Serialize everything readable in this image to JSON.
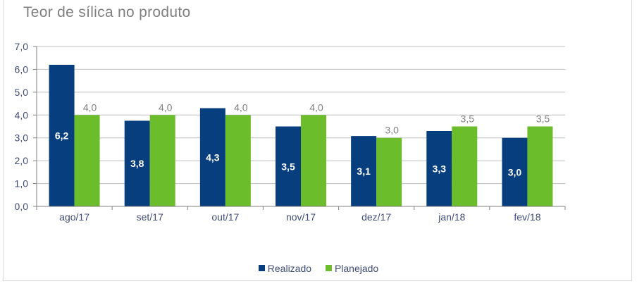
{
  "chart_data": {
    "type": "bar",
    "title": "Teor de sílica no produto",
    "xlabel": "",
    "ylabel": "",
    "ylim": [
      0,
      7
    ],
    "yticks": [
      0,
      1,
      2,
      3,
      4,
      5,
      6,
      7
    ],
    "ytick_labels": [
      "0,0",
      "1,0",
      "2,0",
      "3,0",
      "4,0",
      "5,0",
      "6,0",
      "7,0"
    ],
    "grid": true,
    "legend_position": "bottom",
    "categories": [
      "ago/17",
      "set/17",
      "out/17",
      "nov/17",
      "dez/17",
      "jan/18",
      "fev/18"
    ],
    "series": [
      {
        "name": "Realizado",
        "color": "#073e7e",
        "values": [
          6.2,
          3.75,
          4.3,
          3.5,
          3.08,
          3.3,
          3.0
        ],
        "labels": [
          "6,2",
          "3,8",
          "4,3",
          "3,5",
          "3,1",
          "3,3",
          "3,0"
        ],
        "label_position": "inside",
        "label_color": "#ffffff"
      },
      {
        "name": "Planejado",
        "color": "#6bbd2b",
        "values": [
          4.0,
          4.0,
          4.0,
          4.0,
          3.0,
          3.5,
          3.5
        ],
        "labels": [
          "4,0",
          "4,0",
          "4,0",
          "4,0",
          "3,0",
          "3,5",
          "3,5"
        ],
        "label_position": "above",
        "label_color": "#808080"
      }
    ]
  }
}
